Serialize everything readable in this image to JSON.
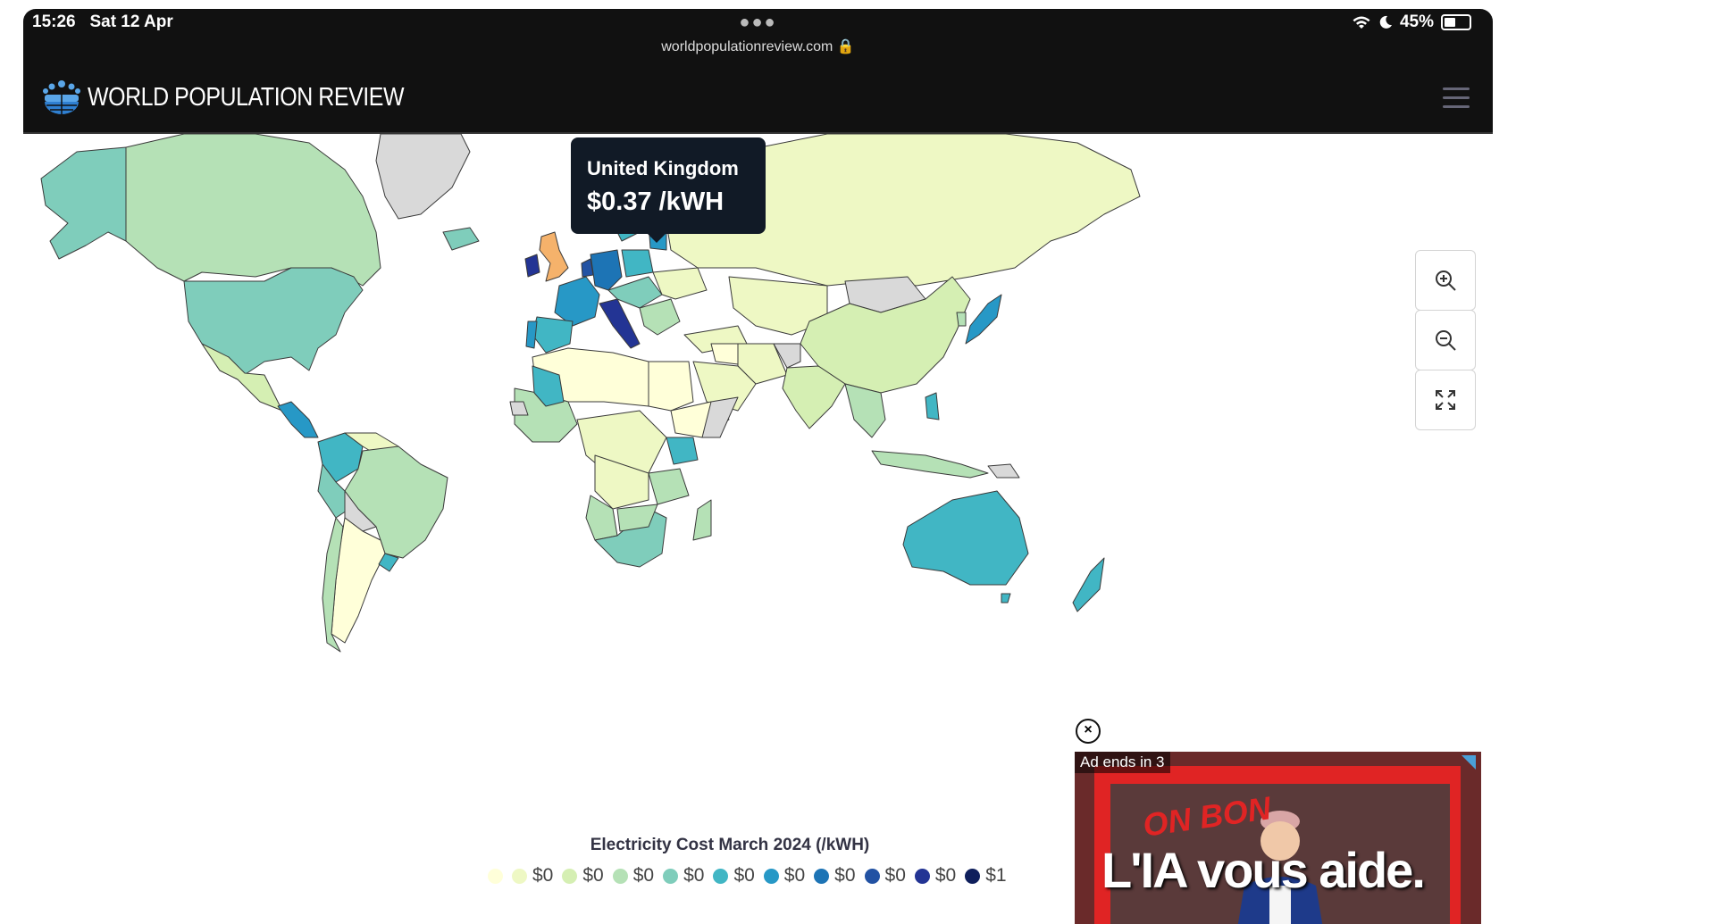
{
  "status_bar": {
    "time": "15:26",
    "date": "Sat 12 Apr",
    "url": "worldpopulationreview.com",
    "battery": "45%",
    "battery_level": 0.45
  },
  "header": {
    "site_name": "WORLD POPULATION REVIEW",
    "logo_icon": "people-globe-icon",
    "menu_icon": "hamburger-icon"
  },
  "map": {
    "tooltip": {
      "country": "United Kingdom",
      "value": "$0.37 /kWH"
    },
    "legend_title": "Electricity Cost March 2024 (/kWH)",
    "legend": [
      {
        "label": "",
        "color": "#ffffd9"
      },
      {
        "label": "$0",
        "color": "#eef8c4"
      },
      {
        "label": "$0",
        "color": "#d5efb3"
      },
      {
        "label": "$0",
        "color": "#b5e1b6"
      },
      {
        "label": "$0",
        "color": "#7fcdbb"
      },
      {
        "label": "$0",
        "color": "#41b6c4"
      },
      {
        "label": "$0",
        "color": "#2798c6"
      },
      {
        "label": "$0",
        "color": "#1d74b5"
      },
      {
        "label": "$0",
        "color": "#2252a3"
      },
      {
        "label": "$0",
        "color": "#233494"
      },
      {
        "label": "$1",
        "color": "#0f1f5c"
      }
    ],
    "controls": {
      "zoom_in": "zoom-in-icon",
      "zoom_out": "zoom-out-icon",
      "fullscreen": "fullscreen-icon"
    },
    "no_data_color": "#d9d9d9",
    "highlight_color": "#f5b26b"
  },
  "ad": {
    "countdown": "Ad ends in 3",
    "bon_text": "ON BON",
    "headline": "L'IA vous aide."
  }
}
